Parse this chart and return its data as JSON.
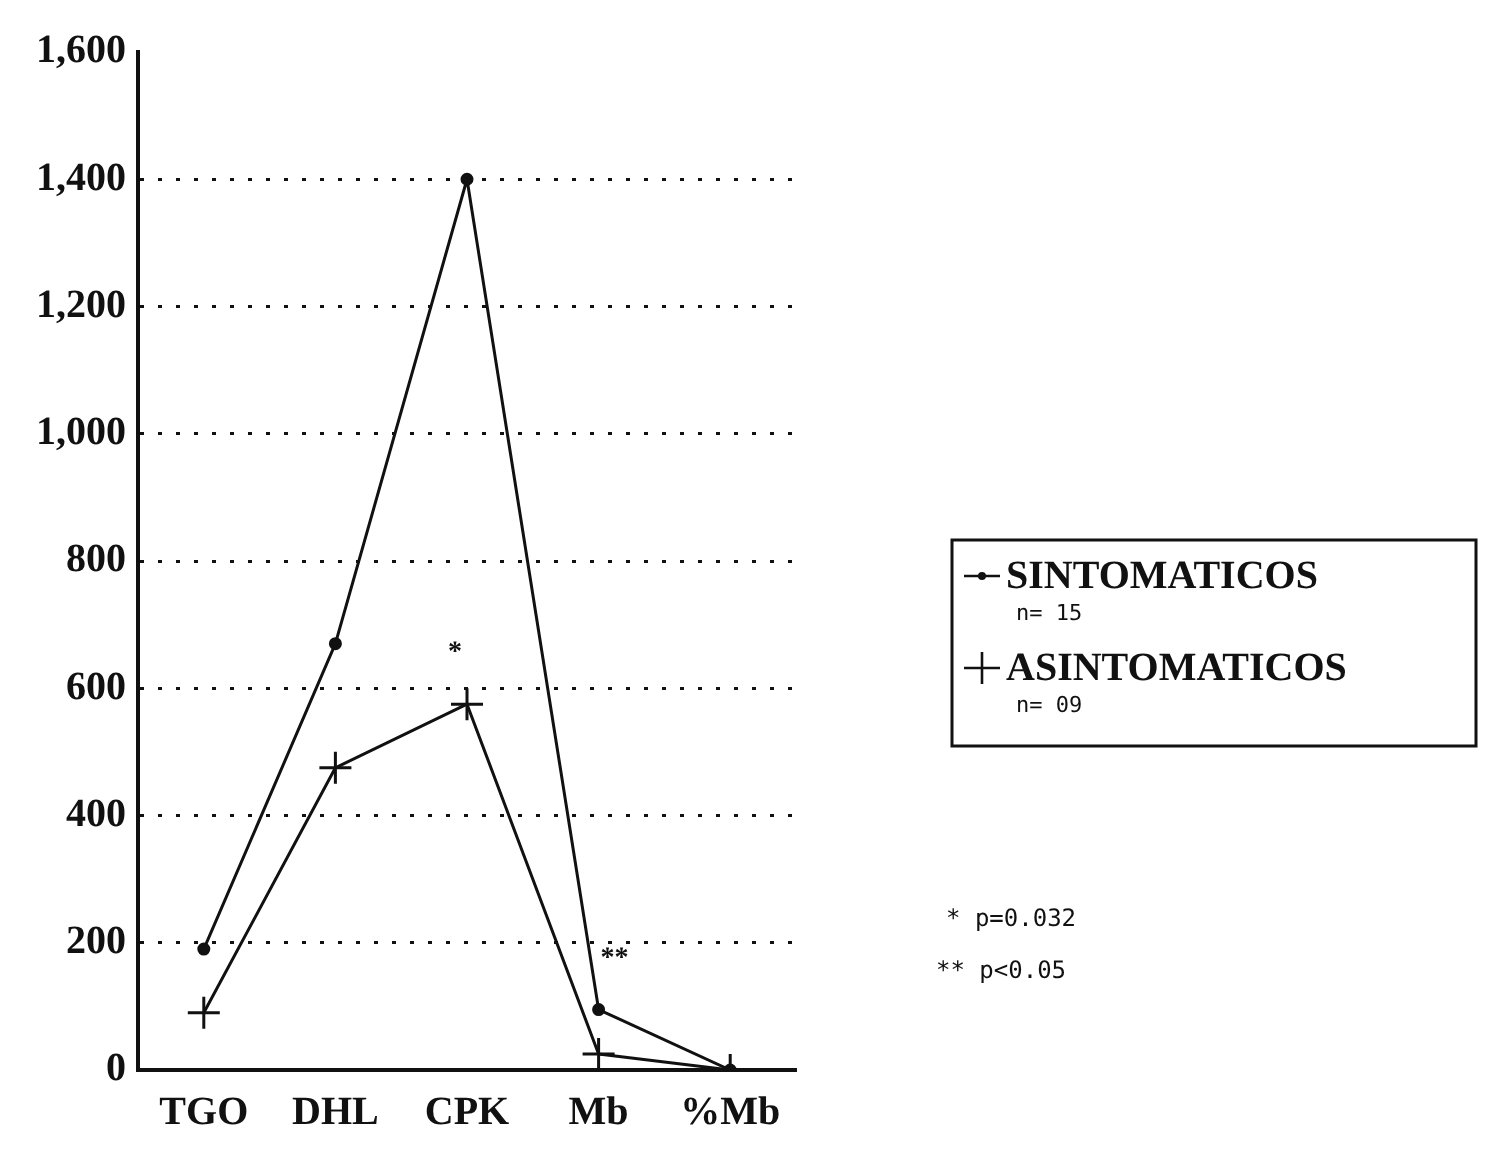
{
  "chart_data": {
    "type": "line",
    "categories": [
      "TGO",
      "DHL",
      "CPK",
      "Mb",
      "%Mb"
    ],
    "series": [
      {
        "name": "SINTOMATICOS",
        "color": "#111111",
        "marker": "circle",
        "values": [
          190,
          670,
          1400,
          95,
          0
        ]
      },
      {
        "name": "ASINTOMATICOS",
        "color": "#111111",
        "marker": "cross",
        "values": [
          90,
          475,
          575,
          25,
          0
        ]
      }
    ],
    "ylim": [
      0,
      1600
    ],
    "yticks": [
      {
        "value": 0,
        "label": "0"
      },
      {
        "value": 200,
        "label": "200"
      },
      {
        "value": 400,
        "label": "400"
      },
      {
        "value": 600,
        "label": "600"
      },
      {
        "value": 800,
        "label": "800"
      },
      {
        "value": 1000,
        "label": "1,000"
      },
      {
        "value": 1200,
        "label": "1,200"
      },
      {
        "value": 1400,
        "label": "1,400"
      },
      {
        "value": 1600,
        "label": "1,600"
      }
    ],
    "grid": "y",
    "legend": "right",
    "line_style": "solid",
    "annotations": [
      "n= 15",
      "n= 09",
      {
        "text": "*",
        "x": "CPK",
        "y": 575
      },
      {
        "text": "**",
        "x": "Mb",
        "y": 95
      },
      "* p=0.032",
      "** p<0.05"
    ]
  }
}
